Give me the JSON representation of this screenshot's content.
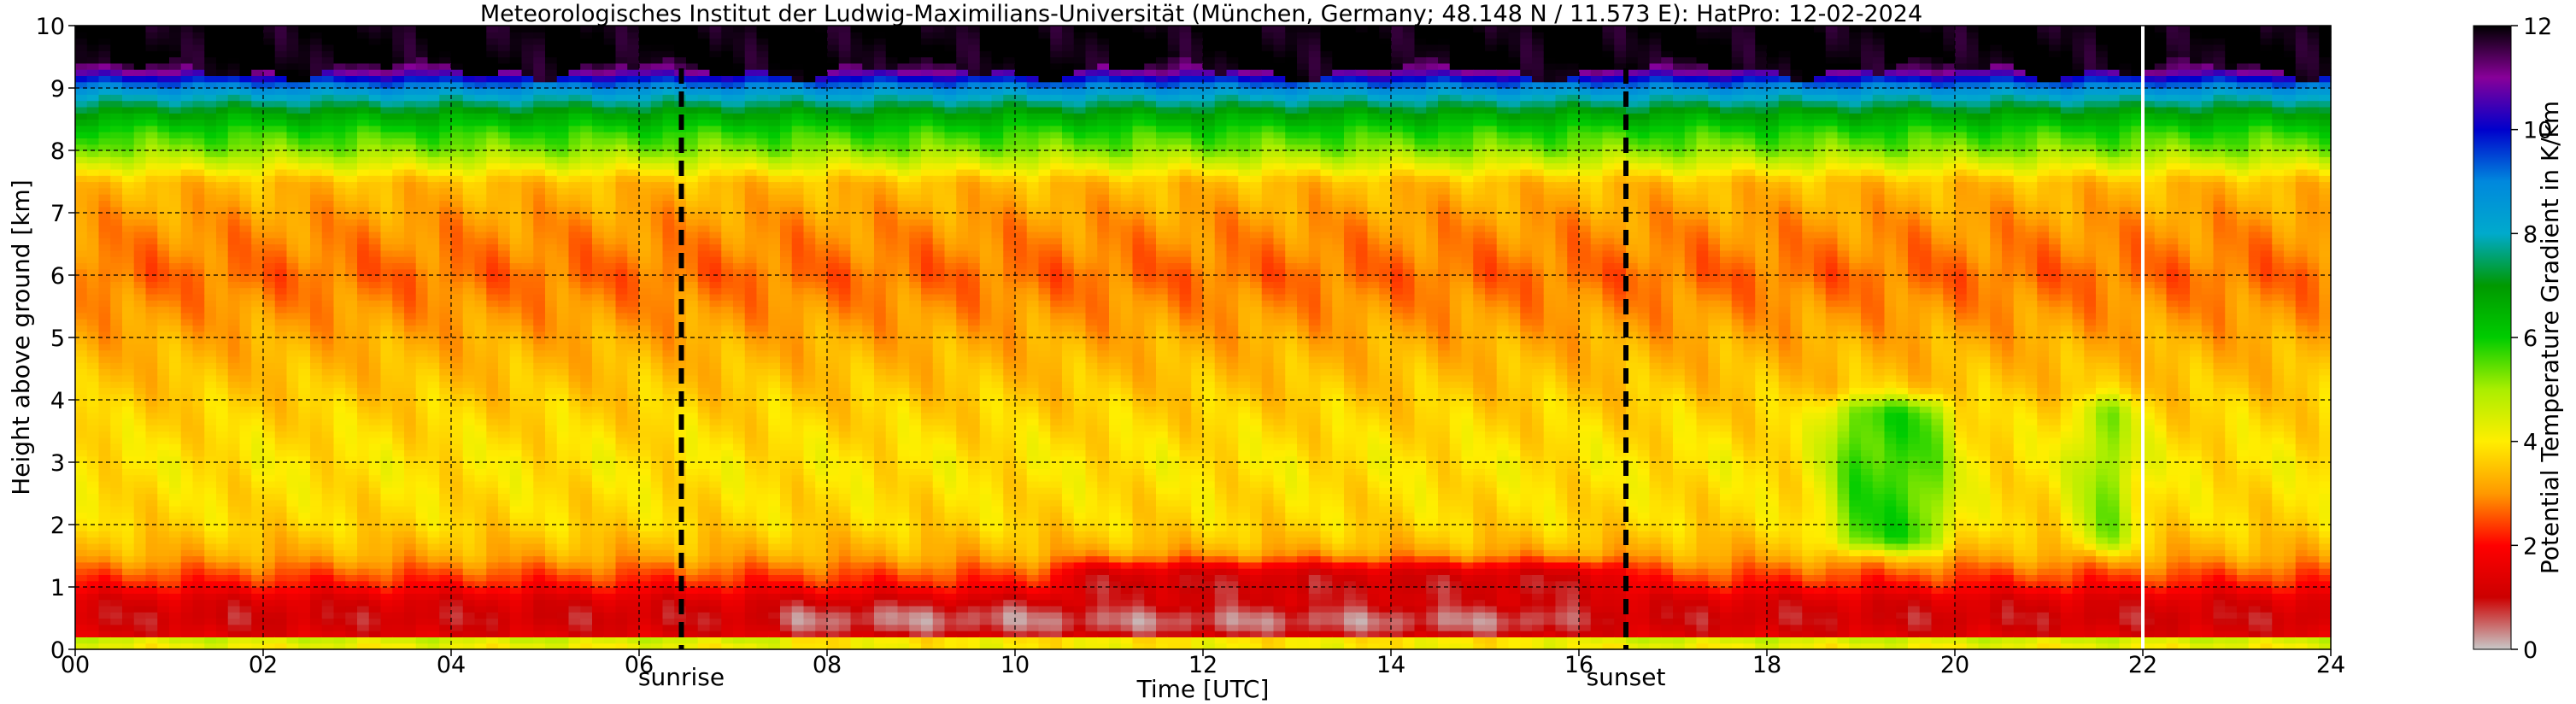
{
  "chart_data": {
    "type": "heatmap",
    "title": "Meteorologisches Institut der Ludwig-Maximilians-Universität (München, Germany; 48.148 N / 11.573 E):    HatPro: 12-02-2024",
    "xlabel": "Time [UTC]",
    "ylabel": "Height above ground [km]",
    "xlim": [
      0,
      24
    ],
    "ylim": [
      0,
      10
    ],
    "x_ticks": [
      "00",
      "02",
      "04",
      "06",
      "08",
      "10",
      "12",
      "14",
      "16",
      "18",
      "20",
      "22",
      "24"
    ],
    "y_ticks": [
      "0",
      "1",
      "2",
      "3",
      "4",
      "5",
      "6",
      "7",
      "8",
      "9",
      "10"
    ],
    "grid": true,
    "colorbar": {
      "label": "Potential Temperature Gradient in K/km",
      "range": [
        0,
        12
      ],
      "ticks": [
        "0",
        "2",
        "4",
        "6",
        "8",
        "10",
        "12"
      ],
      "stops": [
        "#c8c8c8",
        "#cc0000",
        "#ff0000",
        "#ff9900",
        "#ffee00",
        "#aaee00",
        "#00cc00",
        "#009900",
        "#00aacc",
        "#0088dd",
        "#0000cc",
        "#880099",
        "#000000"
      ]
    },
    "markers": [
      {
        "time": 6.45,
        "label": "sunrise"
      },
      {
        "time": 16.5,
        "label": "sunset"
      }
    ],
    "current_time_line": 22.0,
    "profile": {
      "heights_km": [
        0.0,
        0.15,
        0.25,
        0.5,
        0.8,
        1.0,
        1.5,
        2.0,
        3.0,
        4.0,
        5.0,
        6.0,
        6.8,
        7.5,
        8.0,
        8.3,
        8.6,
        8.9,
        9.1,
        9.3,
        9.6,
        10.0
      ],
      "gradient_K_per_km": [
        4.0,
        4.5,
        1.3,
        1.0,
        1.3,
        2.0,
        3.2,
        3.7,
        3.9,
        3.6,
        3.2,
        2.7,
        3.0,
        3.4,
        5.2,
        5.8,
        6.8,
        8.2,
        9.5,
        11.2,
        12.0,
        12.0
      ]
    },
    "events": [
      {
        "type": "surface_inversion",
        "t_start": 7.5,
        "t_end": 15.9,
        "z_min": 0.3,
        "z_max": 0.65,
        "value": 0.3
      },
      {
        "type": "elevated_inversion",
        "t_start": 10.5,
        "t_end": 16.5,
        "z_min": 0.7,
        "z_max": 1.35,
        "value": 1.0
      },
      {
        "type": "well_mixed",
        "t_start": 18.7,
        "t_end": 19.9,
        "z_min": 1.6,
        "z_max": 4.0,
        "value": 5.8
      },
      {
        "type": "well_mixed",
        "t_start": 21.4,
        "t_end": 21.8,
        "z_min": 1.6,
        "z_max": 4.0,
        "value": 5.8
      }
    ]
  }
}
